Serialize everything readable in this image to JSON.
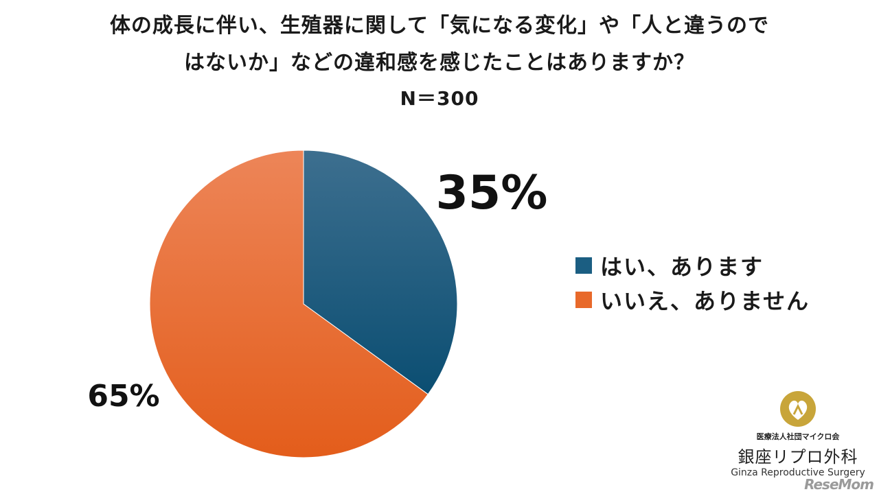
{
  "title": {
    "line1": "体の成長に伴い、生殖器に関して「気になる変化」や「人と違うので",
    "line2": "はないか」などの違和感を感じたことはありますか？",
    "line3": "N＝300"
  },
  "chart_data": {
    "type": "pie",
    "title": "体の成長に伴い、生殖器に関して「気になる変化」や「人と違うのではないか」などの違和感を感じたことはありますか？",
    "subtitle": "N＝300",
    "legend_position": "right",
    "slices": [
      {
        "label": "はい、あります",
        "value": 35,
        "display": "35%",
        "color": "#1b5e82"
      },
      {
        "label": "いいえ、ありません",
        "value": 65,
        "display": "65%",
        "color": "#e8692a"
      }
    ]
  },
  "logo": {
    "org": "医療法人社団マイクロ会",
    "name": "銀座リプロ外科",
    "english": "Ginza Reproductive Surgery"
  },
  "watermark": "ReseMom"
}
